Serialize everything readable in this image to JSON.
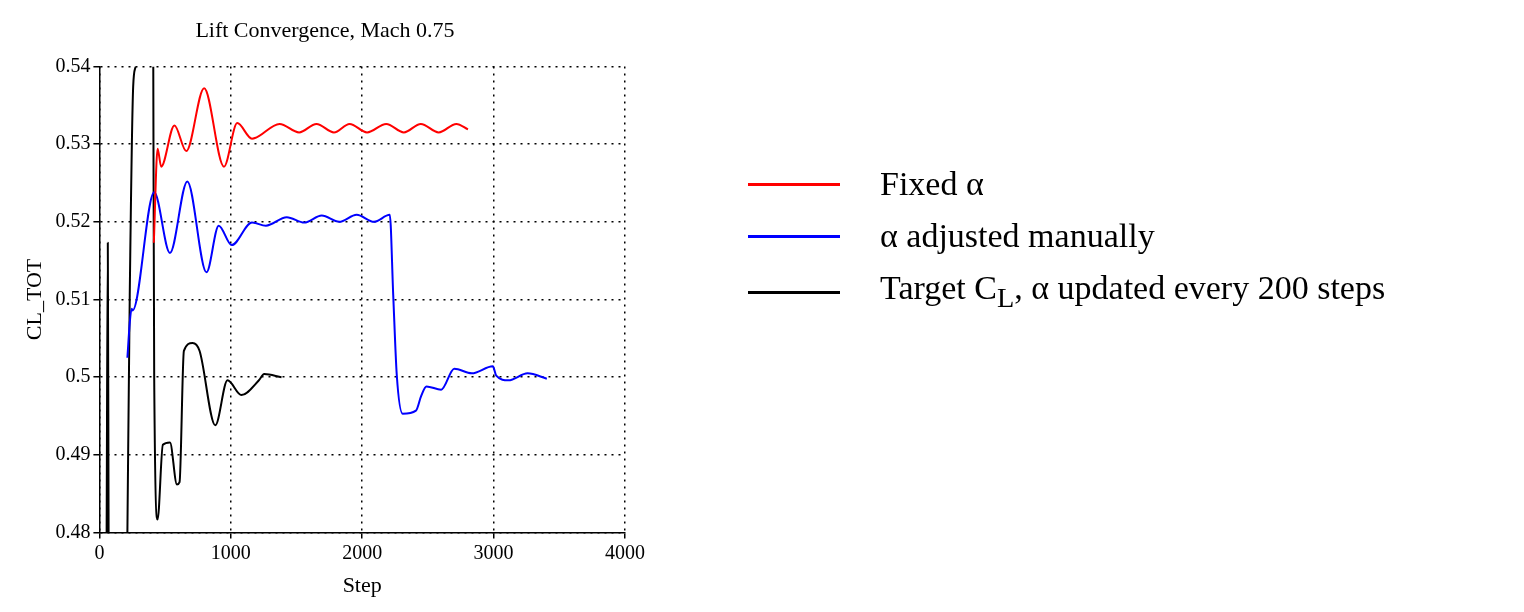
{
  "chart_data": {
    "type": "line",
    "title": "Lift Convergence, Mach 0.75",
    "xlabel": "Step",
    "ylabel": "CL_TOT",
    "xlim": [
      0,
      4000
    ],
    "xticks": [
      0,
      1000,
      2000,
      3000,
      4000
    ],
    "ylim": [
      0.48,
      0.54
    ],
    "yticks": [
      0.48,
      0.49,
      0.5,
      0.51,
      0.52,
      0.53,
      0.54
    ],
    "grid": true,
    "legend": "right",
    "marker": "none",
    "line_style": "solid",
    "series": [
      {
        "name": "Fixed α",
        "color": "#ff0000",
        "x": [
          414,
          443,
          470,
          571,
          661,
          797,
          948,
          1049,
          1161,
          1371,
          1520,
          1652,
          1785,
          1904,
          2037,
          2183,
          2317,
          2446,
          2582,
          2717,
          2805
        ],
        "values": [
          0.5173,
          0.5294,
          0.5271,
          0.5324,
          0.5291,
          0.5372,
          0.5271,
          0.5327,
          0.5307,
          0.5326,
          0.5315,
          0.5326,
          0.5315,
          0.5326,
          0.5315,
          0.5326,
          0.5315,
          0.5326,
          0.5315,
          0.5326,
          0.5319
        ]
      },
      {
        "name": "α adjusted manually",
        "color": "#0000ff",
        "x": [
          213,
          231,
          245,
          253,
          417,
          537,
          669,
          815,
          908,
          1007,
          1161,
          1267,
          1426,
          1559,
          1692,
          1825,
          1958,
          2090,
          2210,
          2236,
          2263,
          2308,
          2409,
          2449,
          2489,
          2601,
          2701,
          2834,
          2994,
          3020,
          3113,
          3259,
          3405
        ],
        "values": [
          0.5025,
          0.507,
          0.5088,
          0.5086,
          0.5238,
          0.516,
          0.5252,
          0.5135,
          0.5195,
          0.517,
          0.5199,
          0.5195,
          0.5206,
          0.5199,
          0.5208,
          0.52,
          0.5209,
          0.52,
          0.5209,
          0.5106,
          0.5003,
          0.4953,
          0.4957,
          0.4976,
          0.4988,
          0.4984,
          0.5011,
          0.5005,
          0.5014,
          0.5002,
          0.4996,
          0.5005,
          0.4998
        ]
      },
      {
        "name": "Target C$_{L}$, α updated every 200 steps",
        "color": "#000000",
        "x": [
          55,
          64,
          70,
          140,
          213,
          231,
          257,
          276,
          340,
          410,
          417,
          443,
          483,
          537,
          590,
          610,
          643,
          709,
          762,
          882,
          975,
          1081,
          1214,
          1254,
          1386
        ],
        "values": [
          0.48,
          0.5173,
          0.48,
          null,
          0.48,
          0.5106,
          0.5374,
          0.54,
          null,
          0.54,
          0.5,
          0.4817,
          0.4913,
          0.4916,
          0.4862,
          0.4865,
          0.5034,
          0.5044,
          0.5034,
          0.4938,
          0.4996,
          0.4977,
          0.4996,
          0.5004,
          0.5
        ]
      }
    ]
  }
}
